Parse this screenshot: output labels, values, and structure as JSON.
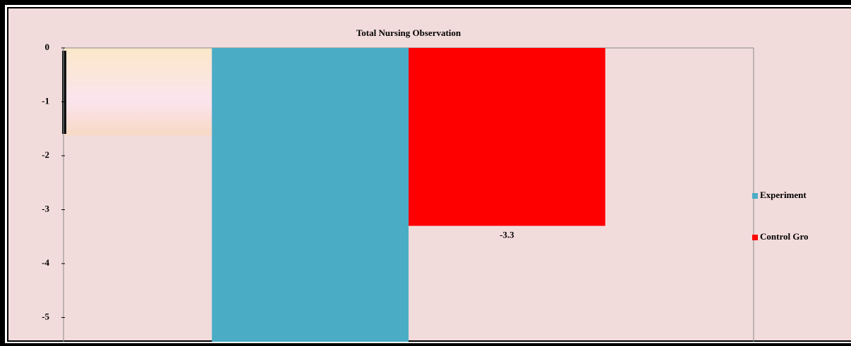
{
  "chart_data": {
    "type": "bar",
    "title": "Total Nursing Observation",
    "categories": [
      null
    ],
    "series": [
      {
        "name": "Experiment",
        "color": "#4bacc6",
        "values": [
          -5.45
        ]
      },
      {
        "name": "Control Gro",
        "color": "#ff0000",
        "values": [
          -3.3
        ],
        "data_labels": true
      }
    ],
    "ylim": [
      -5.45,
      0
    ],
    "yticks": [
      0,
      -1,
      -2,
      -3,
      -4,
      -5
    ],
    "grid": false,
    "legend": "right"
  }
}
